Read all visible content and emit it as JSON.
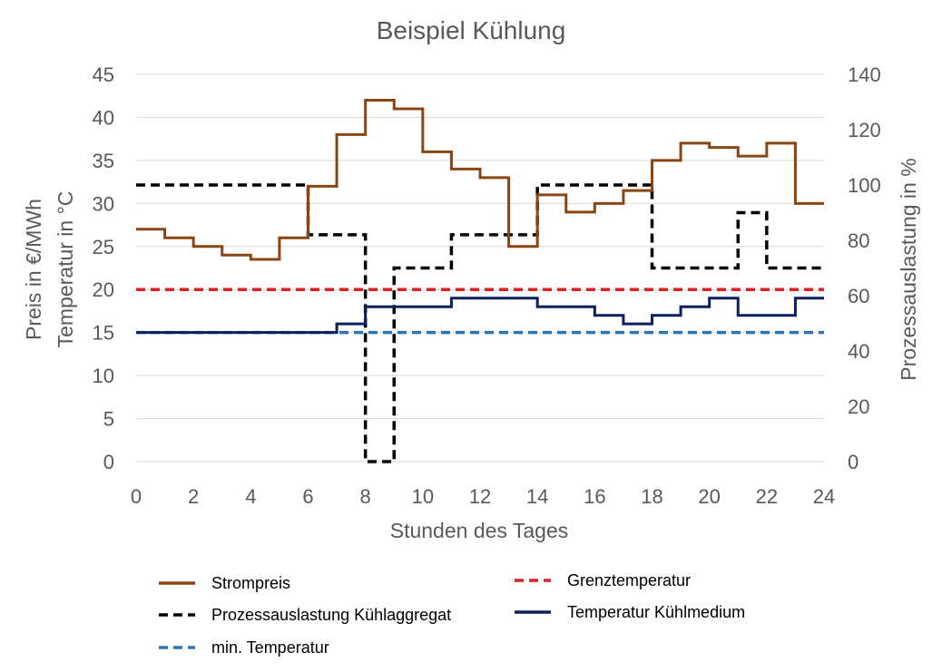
{
  "chart_data": {
    "type": "line",
    "title": "Beispiel Kühlung",
    "xlabel": "Stunden des Tages",
    "ylabel_left": [
      "Preis in €/MWh",
      "Temperatur in °C"
    ],
    "ylabel_right": "Prozessauslastung in %",
    "xlim": [
      0,
      24
    ],
    "ylim_left": [
      0,
      45
    ],
    "ylim_right": [
      0,
      140
    ],
    "xticks": [
      0,
      2,
      4,
      6,
      8,
      10,
      12,
      14,
      16,
      18,
      20,
      22,
      24
    ],
    "yticks_left": [
      0,
      5,
      10,
      15,
      20,
      25,
      30,
      35,
      40,
      45
    ],
    "yticks_right": [
      0,
      20,
      40,
      60,
      80,
      100,
      120,
      140
    ],
    "grid": true,
    "legend_position": "bottom",
    "series": [
      {
        "name": "Strompreis",
        "axis": "left",
        "style": "step-solid",
        "color": "#8B4513",
        "x": [
          0,
          1,
          2,
          3,
          4,
          5,
          6,
          7,
          8,
          9,
          10,
          11,
          12,
          13,
          14,
          15,
          16,
          17,
          18,
          19,
          20,
          21,
          22,
          23
        ],
        "values": [
          27,
          26,
          25,
          24,
          23.5,
          26,
          32,
          38,
          42,
          41,
          36,
          34,
          33,
          25,
          31,
          29,
          30,
          31.5,
          35,
          37,
          36.5,
          35.5,
          37,
          30
        ]
      },
      {
        "name": "Prozessauslastung Kühlaggregat",
        "axis": "right",
        "style": "step-dashed",
        "color": "#000000",
        "x": [
          0,
          1,
          2,
          3,
          4,
          5,
          6,
          7,
          8,
          9,
          10,
          11,
          12,
          13,
          14,
          15,
          16,
          17,
          18,
          19,
          20,
          21,
          22,
          23
        ],
        "values": [
          100,
          100,
          100,
          100,
          100,
          100,
          82,
          82,
          0,
          70,
          70,
          82,
          82,
          82,
          100,
          100,
          100,
          100,
          70,
          70,
          70,
          90,
          70,
          70
        ]
      },
      {
        "name": "min. Temperatur",
        "axis": "left",
        "style": "dashed",
        "color": "#2E75B6",
        "x": [
          0,
          24
        ],
        "values": [
          15,
          15
        ]
      },
      {
        "name": "Grenztemperatur",
        "axis": "left",
        "style": "dashed",
        "color": "#E02020",
        "x": [
          0,
          24
        ],
        "values": [
          20,
          20
        ]
      },
      {
        "name": "Temperatur Kühlmedium",
        "axis": "left",
        "style": "step-solid",
        "color": "#0D1F5C",
        "x": [
          0,
          1,
          2,
          3,
          4,
          5,
          6,
          7,
          8,
          9,
          10,
          11,
          12,
          13,
          14,
          15,
          16,
          17,
          18,
          19,
          20,
          21,
          22,
          23
        ],
        "values": [
          15,
          15,
          15,
          15,
          15,
          15,
          15,
          16,
          18,
          18,
          18,
          19,
          19,
          19,
          18,
          18,
          17,
          16,
          17,
          18,
          19,
          17,
          17,
          19
        ]
      }
    ],
    "legend": [
      {
        "label": "Strompreis",
        "series": 0
      },
      {
        "label": "Grenztemperatur",
        "series": 3
      },
      {
        "label": "Prozessauslastung Kühlaggregat",
        "series": 1
      },
      {
        "label": "Temperatur Kühlmedium",
        "series": 4
      },
      {
        "label": "min. Temperatur",
        "series": 2
      }
    ]
  }
}
